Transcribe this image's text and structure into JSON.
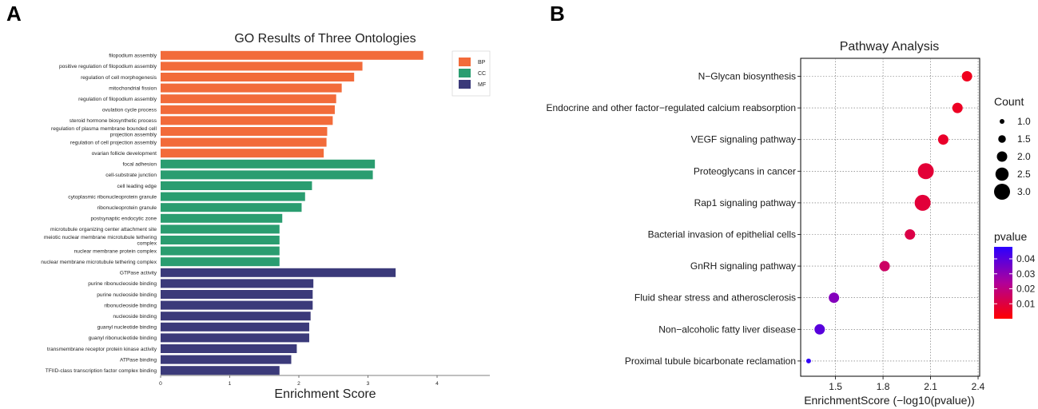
{
  "panel_labels": [
    "A",
    "B"
  ],
  "colors": {
    "BP": "#F26B3A",
    "CC": "#2A9D70",
    "MF": "#3B3A7A",
    "pvalue_low": "#FF0000",
    "pvalue_high": "#2B00FF"
  },
  "chart_data": [
    {
      "type": "bar",
      "orientation": "horizontal",
      "title": "GO Results of Three Ontologies",
      "xlabel": "Enrichment Score",
      "ylabel": "",
      "xlim": [
        0,
        4.75
      ],
      "xticks": [
        0,
        1,
        2,
        3,
        4
      ],
      "grid": false,
      "legend_position": "top-right",
      "legend": [
        {
          "key": "BP",
          "label": "BP"
        },
        {
          "key": "CC",
          "label": "CC"
        },
        {
          "key": "MF",
          "label": "MF"
        }
      ],
      "bars": [
        {
          "label": "filopodium assembly",
          "value": 3.8,
          "group": "BP"
        },
        {
          "label": "positive regulation of filopodium assembly",
          "value": 2.92,
          "group": "BP"
        },
        {
          "label": "regulation of cell morphogenesis",
          "value": 2.8,
          "group": "BP"
        },
        {
          "label": "mitochondrial fission",
          "value": 2.62,
          "group": "BP"
        },
        {
          "label": "regulation of filopodium assembly",
          "value": 2.54,
          "group": "BP"
        },
        {
          "label": "ovulation cycle process",
          "value": 2.52,
          "group": "BP"
        },
        {
          "label": "steroid hormone biosynthetic process",
          "value": 2.49,
          "group": "BP"
        },
        {
          "label": "regulation of plasma membrane bounded cell projection assembly",
          "value": 2.41,
          "group": "BP"
        },
        {
          "label": "regulation of cell projection assembly",
          "value": 2.4,
          "group": "BP"
        },
        {
          "label": "ovarian follicle development",
          "value": 2.36,
          "group": "BP"
        },
        {
          "label": "focal adhesion",
          "value": 3.1,
          "group": "CC"
        },
        {
          "label": "cell-substrate junction",
          "value": 3.07,
          "group": "CC"
        },
        {
          "label": "cell leading edge",
          "value": 2.19,
          "group": "CC"
        },
        {
          "label": "cytoplasmic ribonucleoprotein granule",
          "value": 2.09,
          "group": "CC"
        },
        {
          "label": "ribonucleoprotein granule",
          "value": 2.04,
          "group": "CC"
        },
        {
          "label": "postsynaptic endocytic zone",
          "value": 1.76,
          "group": "CC"
        },
        {
          "label": "microtubule organizing center attachment site",
          "value": 1.72,
          "group": "CC"
        },
        {
          "label": "meiotic nuclear membrane microtubule tethering complex",
          "value": 1.72,
          "group": "CC"
        },
        {
          "label": "nuclear membrane protein complex",
          "value": 1.72,
          "group": "CC"
        },
        {
          "label": "nuclear membrane microtubule tethering complex",
          "value": 1.72,
          "group": "CC"
        },
        {
          "label": "GTPase activity",
          "value": 3.4,
          "group": "MF"
        },
        {
          "label": "purine ribonucleoside binding",
          "value": 2.21,
          "group": "MF"
        },
        {
          "label": "purine nucleoside binding",
          "value": 2.2,
          "group": "MF"
        },
        {
          "label": "ribonucleoside binding",
          "value": 2.2,
          "group": "MF"
        },
        {
          "label": "nucleoside binding",
          "value": 2.17,
          "group": "MF"
        },
        {
          "label": "guanyl nucleotide binding",
          "value": 2.15,
          "group": "MF"
        },
        {
          "label": "guanyl ribonucleotide binding",
          "value": 2.15,
          "group": "MF"
        },
        {
          "label": "transmembrane receptor protein kinase activity",
          "value": 1.97,
          "group": "MF"
        },
        {
          "label": "ATPase binding",
          "value": 1.89,
          "group": "MF"
        },
        {
          "label": "TFIID-class transcription factor complex binding",
          "value": 1.72,
          "group": "MF"
        }
      ]
    },
    {
      "type": "scatter",
      "title": "Pathway Analysis",
      "xlabel": "EnrichmentScore (−log10(pvalue))",
      "ylabel": "",
      "xlim": [
        1.28,
        2.41
      ],
      "xticks": [
        1.5,
        1.8,
        2.1,
        2.4
      ],
      "xtick_labels": [
        "1.5",
        "1.8",
        "2.1",
        "2.4"
      ],
      "grid": true,
      "size_legend": {
        "title": "Count",
        "values": [
          1.0,
          1.5,
          2.0,
          2.5,
          3.0
        ],
        "labels": [
          "1.0",
          "1.5",
          "2.0",
          "2.5",
          "3.0"
        ]
      },
      "color_legend": {
        "title": "pvalue",
        "range": [
          0.0,
          0.048
        ],
        "ticks": [
          0.01,
          0.02,
          0.03,
          0.04
        ],
        "tick_labels": [
          "0.01",
          "0.02",
          "0.03",
          "0.04"
        ]
      },
      "points": [
        {
          "label": "N−Glycan biosynthesis",
          "x": 2.33,
          "count": 2,
          "pvalue": 0.0047
        },
        {
          "label": "Endocrine and other factor−regulated calcium reabsorption",
          "x": 2.27,
          "count": 2,
          "pvalue": 0.0054
        },
        {
          "label": "VEGF signaling pathway",
          "x": 2.18,
          "count": 2,
          "pvalue": 0.0066
        },
        {
          "label": "Proteoglycans in cancer",
          "x": 2.07,
          "count": 3,
          "pvalue": 0.0085
        },
        {
          "label": "Rap1 signaling pathway",
          "x": 2.05,
          "count": 3,
          "pvalue": 0.0089
        },
        {
          "label": "Bacterial invasion of epithelial cells",
          "x": 1.97,
          "count": 2,
          "pvalue": 0.011
        },
        {
          "label": "GnRH signaling pathway",
          "x": 1.81,
          "count": 2,
          "pvalue": 0.0155
        },
        {
          "label": "Fluid shear stress and atherosclerosis",
          "x": 1.49,
          "count": 2,
          "pvalue": 0.032
        },
        {
          "label": "Non−alcoholic fatty liver disease",
          "x": 1.4,
          "count": 2,
          "pvalue": 0.0398
        },
        {
          "label": "Proximal tubule bicarbonate reclamation",
          "x": 1.33,
          "count": 1,
          "pvalue": 0.047
        }
      ]
    }
  ]
}
